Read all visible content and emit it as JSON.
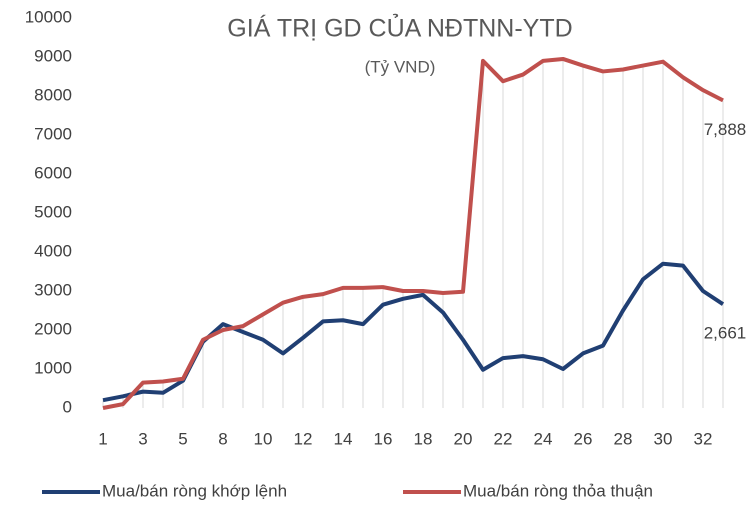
{
  "chart_data": {
    "type": "line",
    "title": "GIÁ TRỊ GD CỦA NĐTNN-YTD",
    "subtitle": "(Tỷ VND)",
    "categories": [
      "1",
      null,
      "3",
      null,
      "5",
      null,
      "8",
      null,
      "10",
      null,
      "12",
      null,
      "14",
      null,
      "16",
      null,
      "18",
      null,
      "20",
      null,
      "22",
      null,
      "24",
      null,
      "26",
      null,
      "28",
      null,
      "30",
      null,
      "32",
      null
    ],
    "series": [
      {
        "name": "Mua/bán ròng khớp lệnh",
        "color": "#203f73",
        "values": [
          200,
          300,
          420,
          390,
          700,
          1700,
          2150,
          1950,
          1750,
          1400,
          1800,
          2220,
          2250,
          2150,
          2650,
          2800,
          2900,
          2450,
          1750,
          980,
          1280,
          1330,
          1250,
          1000,
          1400,
          1600,
          2500,
          3300,
          3700,
          3650,
          3000,
          2661
        ],
        "value_labels": [
          null,
          null,
          null,
          null,
          null,
          null,
          null,
          null,
          null,
          null,
          null,
          null,
          null,
          null,
          null,
          null,
          null,
          null,
          null,
          null,
          null,
          null,
          null,
          null,
          null,
          null,
          null,
          null,
          null,
          null,
          null,
          "2,661"
        ]
      },
      {
        "name": "Mua/bán ròng thỏa thuận",
        "color": "#c0504d",
        "values": [
          0,
          100,
          650,
          680,
          750,
          1750,
          2000,
          2100,
          2400,
          2700,
          2850,
          2920,
          3080,
          3080,
          3100,
          3000,
          3000,
          2950,
          2980,
          8900,
          8380,
          8550,
          8900,
          8950,
          8780,
          8630,
          8680,
          8780,
          8880,
          8480,
          8150,
          7888
        ],
        "value_labels": [
          null,
          null,
          null,
          null,
          null,
          null,
          null,
          null,
          null,
          null,
          null,
          null,
          null,
          null,
          null,
          null,
          null,
          null,
          null,
          null,
          null,
          null,
          null,
          null,
          null,
          null,
          null,
          null,
          null,
          null,
          null,
          "7,888"
        ]
      }
    ],
    "ylim": [
      0,
      10000
    ],
    "yticks": [
      0,
      1000,
      2000,
      3000,
      4000,
      5000,
      6000,
      7000,
      8000,
      9000,
      10000
    ],
    "legend": "bottom",
    "drop_lines": true
  }
}
